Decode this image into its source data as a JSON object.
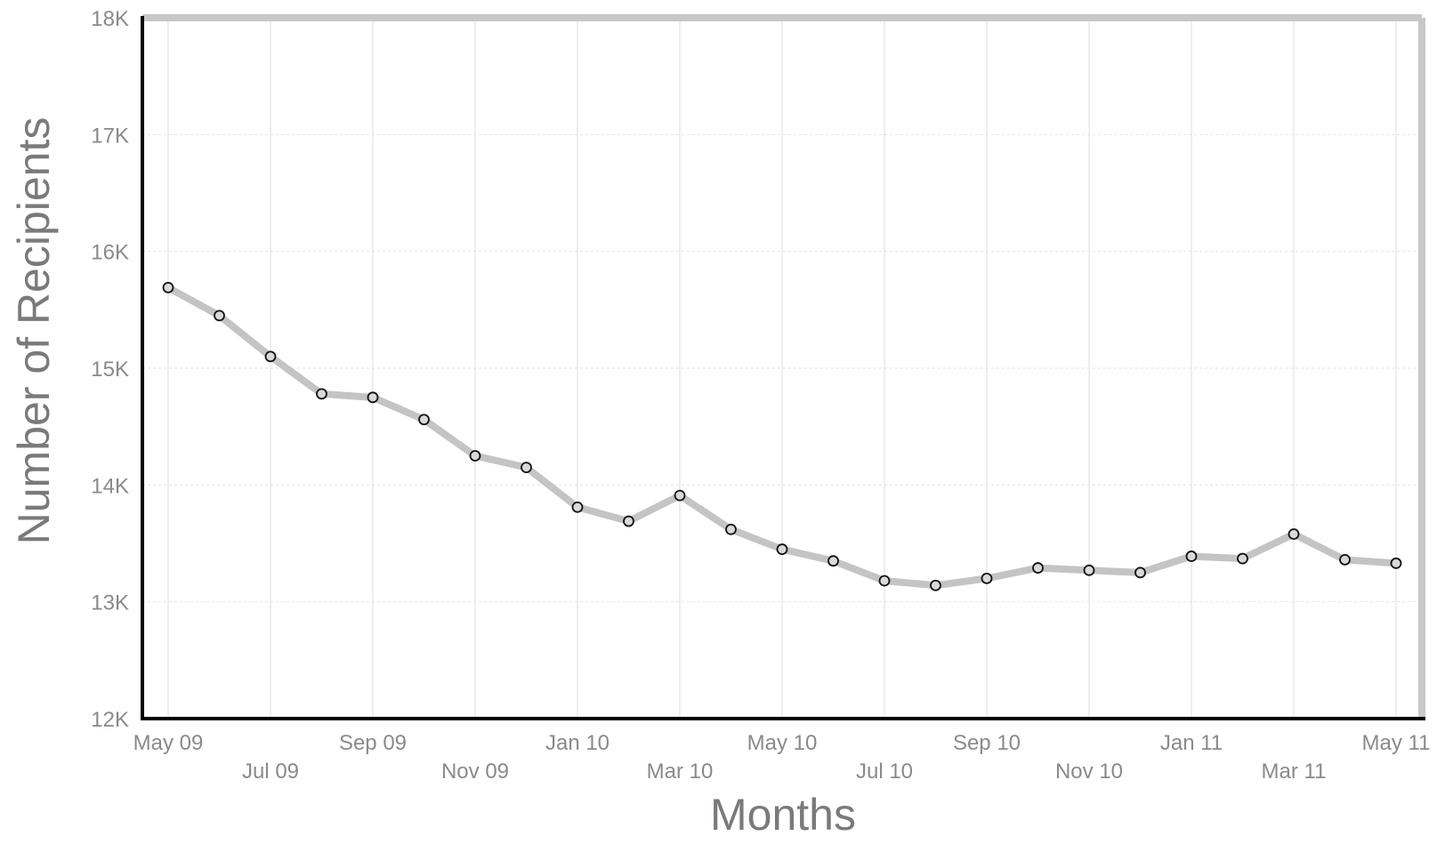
{
  "chart_data": {
    "type": "line",
    "xlabel": "Months",
    "ylabel": "Number of Recipients",
    "ylim": [
      12000,
      18000
    ],
    "grid": true,
    "y_ticks": [
      {
        "value": 12000,
        "label": "12K"
      },
      {
        "value": 13000,
        "label": "13K"
      },
      {
        "value": 14000,
        "label": "14K"
      },
      {
        "value": 15000,
        "label": "15K"
      },
      {
        "value": 16000,
        "label": "16K"
      },
      {
        "value": 17000,
        "label": "17K"
      },
      {
        "value": 18000,
        "label": "18K"
      }
    ],
    "x_ticks": [
      {
        "value": "2009-05",
        "label": "May 09"
      },
      {
        "value": "2009-07",
        "label": "Jul 09"
      },
      {
        "value": "2009-09",
        "label": "Sep 09"
      },
      {
        "value": "2009-11",
        "label": "Nov 09"
      },
      {
        "value": "2010-01",
        "label": "Jan 10"
      },
      {
        "value": "2010-03",
        "label": "Mar 10"
      },
      {
        "value": "2010-05",
        "label": "May 10"
      },
      {
        "value": "2010-07",
        "label": "Jul 10"
      },
      {
        "value": "2010-09",
        "label": "Sep 10"
      },
      {
        "value": "2010-11",
        "label": "Nov 10"
      },
      {
        "value": "2011-01",
        "label": "Jan 11"
      },
      {
        "value": "2011-03",
        "label": "Mar 11"
      },
      {
        "value": "2011-05",
        "label": "May 11"
      }
    ],
    "x": [
      "2009-05",
      "2009-06",
      "2009-07",
      "2009-08",
      "2009-09",
      "2009-10",
      "2009-11",
      "2009-12",
      "2010-01",
      "2010-02",
      "2010-03",
      "2010-04",
      "2010-05",
      "2010-06",
      "2010-07",
      "2010-08",
      "2010-09",
      "2010-10",
      "2010-11",
      "2010-12",
      "2011-01",
      "2011-02",
      "2011-03",
      "2011-04",
      "2011-05"
    ],
    "series": [
      {
        "values": [
          15690,
          15450,
          15100,
          14780,
          14750,
          14560,
          14250,
          14150,
          13810,
          13690,
          13910,
          13620,
          13450,
          13350,
          13180,
          13140,
          13200,
          13290,
          13270,
          13250,
          13390,
          13370,
          13580,
          13360,
          13330
        ]
      }
    ],
    "colors": {
      "line": "#c4c4c4",
      "marker_fill": "#d9d9d9",
      "marker_stroke": "#111111",
      "axis": "#000000",
      "frame": "#c8c8c8",
      "grid": "#e2e2e2"
    }
  }
}
